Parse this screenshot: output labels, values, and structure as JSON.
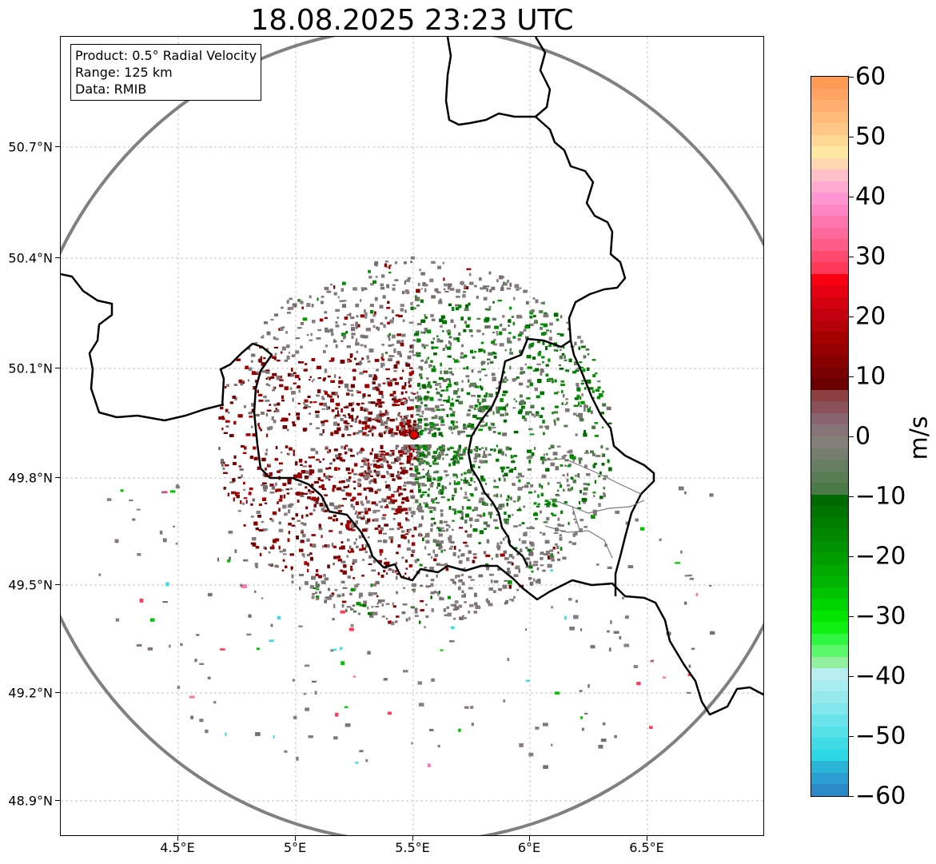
{
  "title": "18.08.2025 23:23 UTC",
  "info": {
    "product": "Product: 0.5° Radial Velocity",
    "range": "Range: 125 km",
    "source": "Data: RMIB"
  },
  "axes": {
    "lat_labels": [
      "50.7°N",
      "50.4°N",
      "50.1°N",
      "49.8°N",
      "49.5°N",
      "49.2°N",
      "48.9°N"
    ],
    "lon_labels": [
      "4.5°E",
      "5°E",
      "5.5°E",
      "6°E",
      "6.5°E"
    ]
  },
  "colorbar": {
    "unit": "m/s",
    "tick_labels": [
      "60",
      "50",
      "40",
      "30",
      "20",
      "10",
      "0",
      "−10",
      "−20",
      "−30",
      "−40",
      "−50",
      "−60"
    ],
    "colors": [
      "#ff9a54",
      "#ffa564",
      "#ffb070",
      "#ffbb7a",
      "#ffc888",
      "#ffd896",
      "#ffe8a4",
      "#ffd7b0",
      "#ffc0c8",
      "#ffaad0",
      "#ff96d2",
      "#ff85c5",
      "#ff76ae",
      "#ff6a9c",
      "#ff5d88",
      "#ff4a70",
      "#ff3a58",
      "#f80010",
      "#e40010",
      "#d40010",
      "#c40010",
      "#b40008",
      "#a40000",
      "#960000",
      "#880000",
      "#7a0000",
      "#6a0000",
      "#8a4040",
      "#8a5258",
      "#886470",
      "#867478",
      "#857f79",
      "#767e6e",
      "#687e62",
      "#5a7c54",
      "#4a7a46",
      "#006a00",
      "#007400",
      "#007e00",
      "#008800",
      "#009200",
      "#009c00",
      "#00a800",
      "#00b400",
      "#00c400",
      "#00d400",
      "#00e400",
      "#10f010",
      "#30f840",
      "#5cf86c",
      "#90f0a0",
      "#b8eef0",
      "#a8ecf0",
      "#96eaee",
      "#80e8ec",
      "#6ae4ea",
      "#56e0e8",
      "#40dce6",
      "#2cd8e4",
      "#2ab4d8",
      "#2a9ed0",
      "#2a8ac8"
    ]
  },
  "radar": {
    "site_lon": 5.505,
    "site_lat": 49.915,
    "range_km": 125,
    "extent": {
      "lon": [
        4.0,
        7.0
      ],
      "lat": [
        48.8,
        51.0
      ]
    }
  }
}
